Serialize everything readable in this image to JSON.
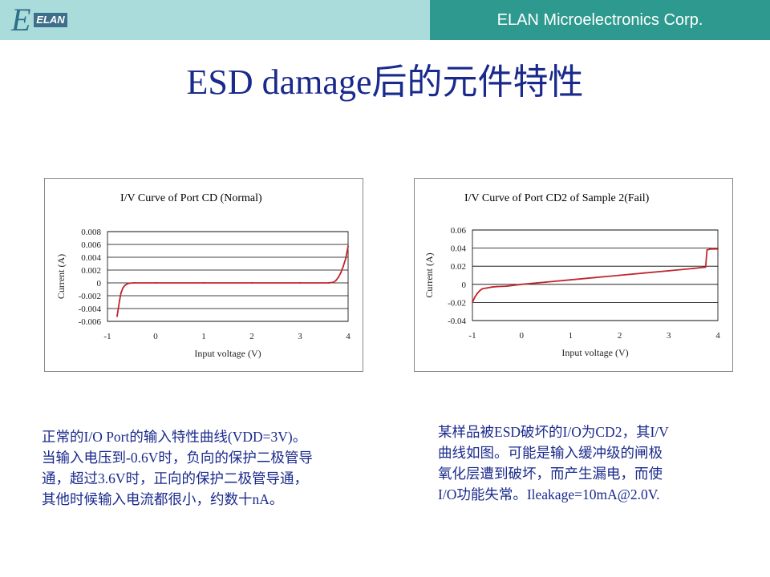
{
  "header": {
    "company": "ELAN Microelectronics Corp.",
    "logo_text": "ELAN",
    "logo_letter": "E"
  },
  "title": "ESD damage后的元件特性",
  "notes": {
    "left": "正常的I/O Port的输入特性曲线(VDD=3V)。\n当输入电压到-0.6V时，负向的保护二极管导\n通，超过3.6V时，正向的保护二极管导通，\n其他时候输入电流都很小，约数十nA。",
    "right": "某样品被ESD破坏的I/O为CD2，其I/V\n曲线如图。可能是输入缓冲级的闸极\n氧化层遭到破坏，而产生漏电，而使\nI/O功能失常。Ileakage=10mA@2.0V."
  },
  "chart_data": [
    {
      "type": "line",
      "title": "I/V Curve of Port CD (Normal)",
      "xlabel": "Input voltage (V)",
      "ylabel": "Current (A)",
      "xlim": [
        -1,
        4
      ],
      "ylim": [
        -0.006,
        0.008
      ],
      "xticks": [
        "-1",
        "0",
        "1",
        "2",
        "3",
        "4"
      ],
      "yticks": [
        "0.008",
        "0.006",
        "0.004",
        "0.002",
        "0",
        "-0.002",
        "-0.004",
        "-0.006"
      ],
      "grid": "horizontal",
      "color": "#c0282d",
      "x": [
        -0.8,
        -0.75,
        -0.72,
        -0.68,
        -0.64,
        -0.6,
        -0.55,
        -0.45,
        0,
        1,
        2,
        3,
        3.6,
        3.7,
        3.75,
        3.8,
        3.85,
        3.9,
        3.95,
        4.0
      ],
      "y": [
        -0.0052,
        -0.0028,
        -0.0016,
        -0.0008,
        -0.0004,
        -0.0002,
        -5e-05,
        0,
        0,
        0,
        0,
        0,
        0,
        0.0001,
        0.0004,
        0.0009,
        0.0016,
        0.0026,
        0.0038,
        0.0057
      ]
    },
    {
      "type": "line",
      "title": "I/V Curve of Port CD2 of Sample 2(Fail)",
      "xlabel": "Input voltage (V)",
      "ylabel": "Current (A)",
      "xlim": [
        -1,
        4
      ],
      "ylim": [
        -0.04,
        0.06
      ],
      "xticks": [
        "-1",
        "0",
        "1",
        "2",
        "3",
        "4"
      ],
      "yticks": [
        "0.06",
        "0.04",
        "0.02",
        "0",
        "-0.02",
        "-0.04"
      ],
      "grid": "horizontal",
      "color": "#c0282d",
      "x": [
        -1,
        -0.95,
        -0.9,
        -0.85,
        -0.8,
        -0.7,
        -0.6,
        -0.5,
        -0.3,
        0,
        0.5,
        1,
        1.5,
        2,
        2.5,
        3,
        3.5,
        3.75,
        3.78,
        3.85,
        4.0
      ],
      "y": [
        -0.02,
        -0.014,
        -0.01,
        -0.007,
        -0.005,
        -0.004,
        -0.003,
        -0.0025,
        -0.002,
        0,
        0.0025,
        0.005,
        0.0075,
        0.01,
        0.0125,
        0.015,
        0.0175,
        0.019,
        0.038,
        0.039,
        0.039
      ]
    }
  ]
}
